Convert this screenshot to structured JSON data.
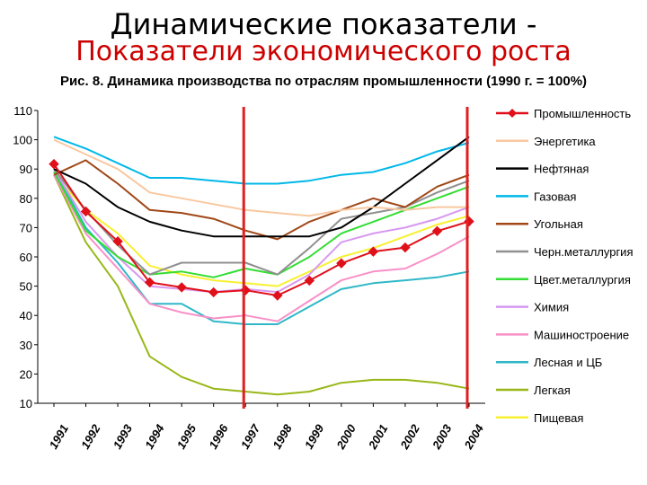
{
  "header": {
    "title": "Динамические показатели -",
    "subtitle": "Показатели экономического роста"
  },
  "chart_data": {
    "type": "line",
    "title": "Рис. 8. Динамика производства по отраслям промышленности (1990 г. = 100%)",
    "xlabel": "",
    "ylabel": "",
    "ylim": [
      10,
      110
    ],
    "yticks": [
      10,
      20,
      30,
      40,
      50,
      60,
      70,
      80,
      90,
      100,
      110
    ],
    "categories": [
      "1991",
      "1992",
      "1993",
      "1994",
      "1995",
      "1996",
      "1997",
      "1998",
      "1999",
      "2000",
      "2001",
      "2002",
      "2003",
      "2004"
    ],
    "legend_position": "right",
    "vertical_markers": [
      "1997",
      "2004"
    ],
    "vertical_marker_color": "#e02020",
    "series": [
      {
        "name": "Промышленность",
        "color": "#e0101a",
        "marker": "diamond",
        "width": 2,
        "values": [
          91.7,
          75.5,
          65.3,
          51.3,
          49.6,
          47.9,
          48.6,
          46.8,
          51.9,
          57.8,
          61.8,
          63.2,
          68.8,
          72.1
        ]
      },
      {
        "name": "Энергетика",
        "color": "#f8c8a0",
        "width": 2,
        "values": [
          100,
          95,
          90,
          82,
          80,
          78,
          76,
          75,
          74,
          76,
          77,
          76,
          77,
          77
        ]
      },
      {
        "name": "Нефтяная",
        "color": "#000000",
        "width": 2,
        "values": [
          90,
          85,
          77,
          72,
          69,
          67,
          67,
          67,
          67,
          70,
          77,
          85,
          93,
          101
        ]
      },
      {
        "name": "Газовая",
        "color": "#00b8e8",
        "width": 2,
        "values": [
          101,
          97,
          92,
          87,
          87,
          86,
          85,
          85,
          86,
          88,
          89,
          92,
          96,
          99
        ]
      },
      {
        "name": "Угольная",
        "color": "#a04818",
        "width": 2,
        "values": [
          88,
          93,
          85,
          76,
          75,
          73,
          69,
          66,
          72,
          76,
          80,
          77,
          84,
          88
        ]
      },
      {
        "name": "Черн.металлургия",
        "color": "#909090",
        "width": 2,
        "values": [
          90,
          76,
          64,
          54,
          58,
          58,
          58,
          54,
          63,
          73,
          75,
          77,
          82,
          86
        ]
      },
      {
        "name": "Цвет.металлургия",
        "color": "#33dd33",
        "width": 2,
        "values": [
          89,
          69,
          60,
          54,
          55,
          53,
          56,
          54,
          60,
          68,
          72,
          76,
          80,
          84
        ]
      },
      {
        "name": "Химия",
        "color": "#d898f0",
        "width": 2,
        "values": [
          90,
          72,
          60,
          50,
          49,
          48,
          49,
          48,
          54,
          65,
          68,
          70,
          73,
          77
        ]
      },
      {
        "name": "Машиностроение",
        "color": "#f890c8",
        "width": 2,
        "values": [
          88,
          68,
          56,
          44,
          41,
          39,
          40,
          38,
          45,
          52,
          55,
          56,
          61,
          67
        ]
      },
      {
        "name": "Лесная и ЦБ",
        "color": "#30b8c8",
        "width": 2,
        "values": [
          90,
          70,
          58,
          44,
          44,
          38,
          37,
          37,
          43,
          49,
          51,
          52,
          53,
          55
        ]
      },
      {
        "name": "Легкая",
        "color": "#98b818",
        "width": 2,
        "values": [
          88,
          65,
          50,
          26,
          19,
          15,
          14,
          13,
          14,
          17,
          18,
          18,
          17,
          15
        ]
      },
      {
        "name": "Пищевая",
        "color": "#f8f030",
        "width": 2,
        "values": [
          88,
          76,
          68,
          57,
          54,
          52,
          51,
          50,
          55,
          60,
          63,
          67,
          71,
          74
        ]
      }
    ]
  }
}
